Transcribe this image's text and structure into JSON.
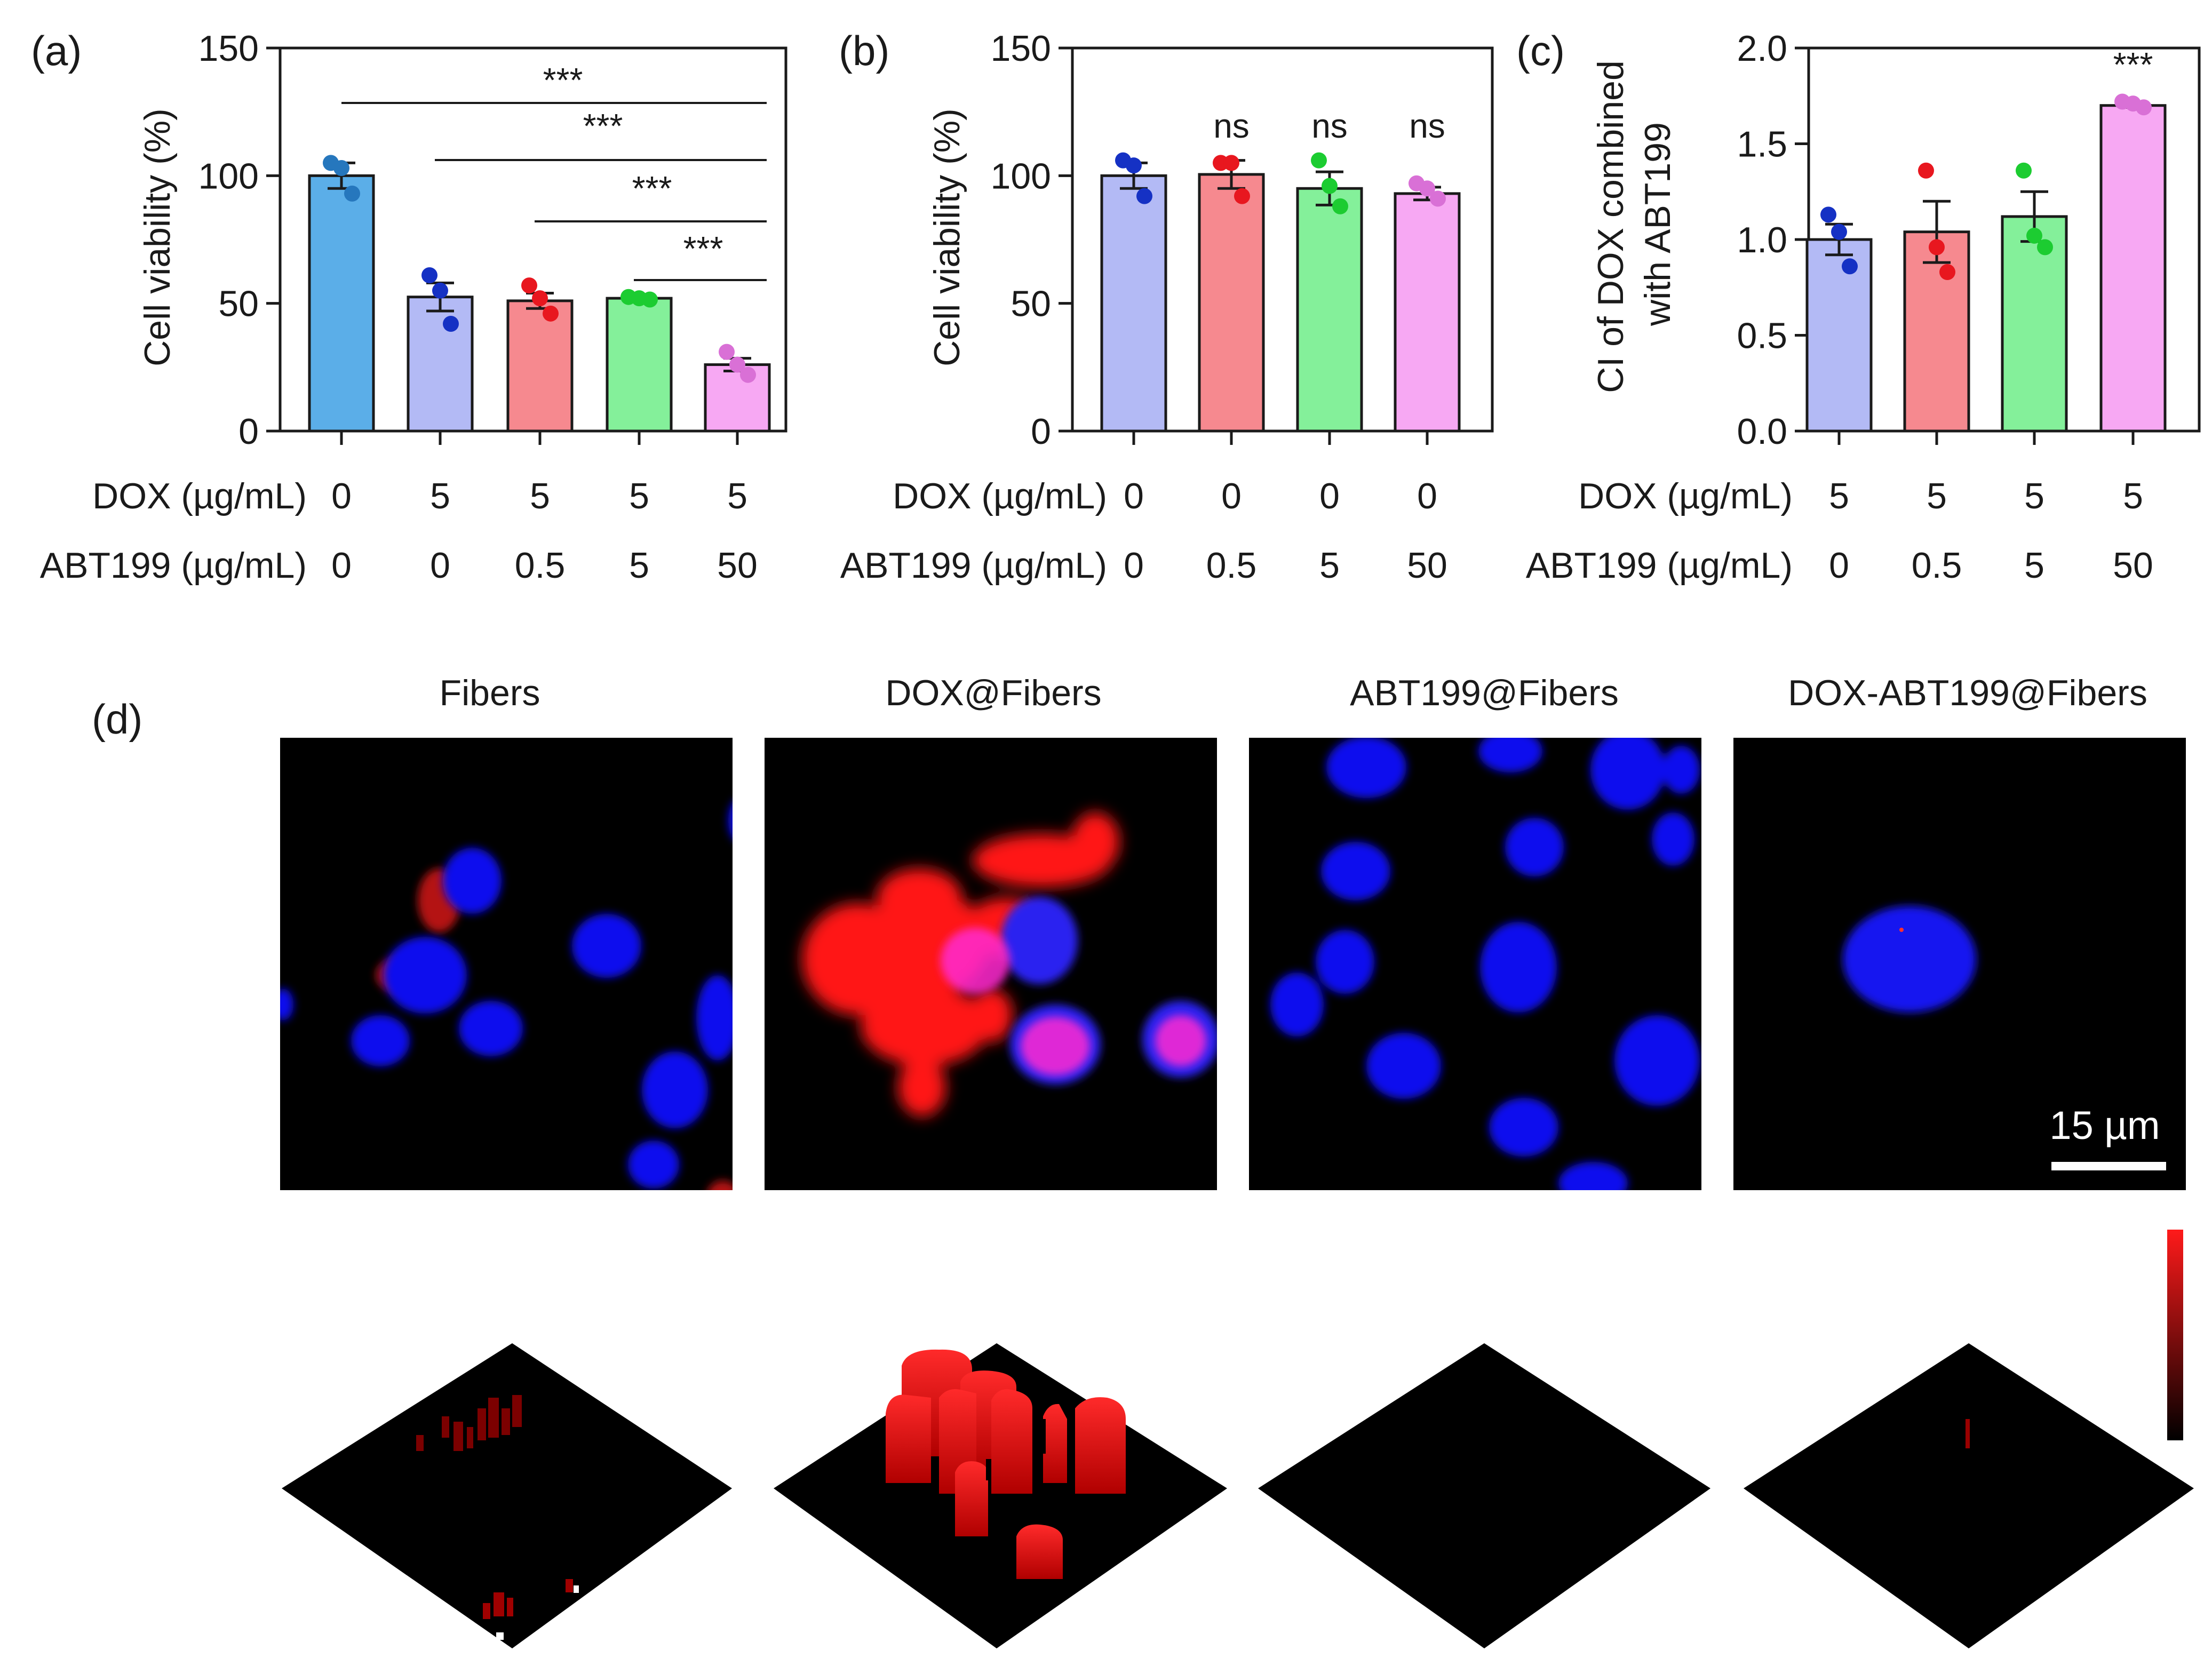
{
  "chart_data": [
    {
      "panel": "(a)",
      "type": "bar",
      "ylabel": "Cell viability (%)",
      "ylim": [
        0,
        150
      ],
      "yticks": [
        0,
        50,
        100,
        150
      ],
      "row_labels": [
        "DOX (µg/mL)",
        "ABT199 (µg/mL)"
      ],
      "categories": [
        {
          "dox": "0",
          "abt": "0"
        },
        {
          "dox": "5",
          "abt": "0"
        },
        {
          "dox": "5",
          "abt": "0.5"
        },
        {
          "dox": "5",
          "abt": "5"
        },
        {
          "dox": "5",
          "abt": "50"
        }
      ],
      "values": [
        100,
        52.5,
        51,
        52,
        26
      ],
      "errors": [
        5,
        5.5,
        3,
        1,
        2.5
      ],
      "points": [
        [
          105,
          103,
          93
        ],
        [
          61,
          55,
          42
        ],
        [
          57,
          52,
          46
        ],
        [
          52.5,
          52,
          51.5
        ],
        [
          31,
          26,
          22
        ]
      ],
      "fill_colors": [
        "#5baee8",
        "#b3baf5",
        "#f6898f",
        "#84f09a",
        "#f7a8f3"
      ],
      "dot_colors": [
        "#2677bd",
        "#1531c4",
        "#e8171f",
        "#1ccc31",
        "#d970d6"
      ],
      "significance": [
        {
          "from": 0,
          "to": 4,
          "label": "***"
        },
        {
          "from": 1,
          "to": 4,
          "label": "***"
        },
        {
          "from": 2,
          "to": 4,
          "label": "***"
        },
        {
          "from": 3,
          "to": 4,
          "label": "***"
        }
      ]
    },
    {
      "panel": "(b)",
      "type": "bar",
      "ylabel": "Cell viability (%)",
      "ylim": [
        0,
        150
      ],
      "yticks": [
        0,
        50,
        100,
        150
      ],
      "row_labels": [
        "DOX (µg/mL)",
        "ABT199 (µg/mL)"
      ],
      "categories": [
        {
          "dox": "0",
          "abt": "0"
        },
        {
          "dox": "0",
          "abt": "0.5"
        },
        {
          "dox": "0",
          "abt": "5"
        },
        {
          "dox": "0",
          "abt": "50"
        }
      ],
      "values": [
        100,
        100.5,
        95,
        93
      ],
      "errors": [
        5,
        5.5,
        6.5,
        2.5
      ],
      "points": [
        [
          106,
          104,
          92
        ],
        [
          105,
          105,
          92
        ],
        [
          106,
          96,
          88
        ],
        [
          97,
          95,
          91
        ]
      ],
      "fill_colors": [
        "#b3baf5",
        "#f6898f",
        "#84f09a",
        "#f7a8f3"
      ],
      "dot_colors": [
        "#1531c4",
        "#e8171f",
        "#1ccc31",
        "#d970d6"
      ],
      "annotations": [
        "",
        "ns",
        "ns",
        "ns"
      ]
    },
    {
      "panel": "(c)",
      "type": "bar",
      "ylabel": "CI of DOX combined with ABT199",
      "ylabel_lines": [
        "CI of DOX combined",
        "with ABT199"
      ],
      "ylim": [
        0,
        2.0
      ],
      "yticks": [
        "0.0",
        "0.5",
        "1.0",
        "1.5",
        "2.0"
      ],
      "row_labels": [
        "DOX (µg/mL)",
        "ABT199 (µg/mL)"
      ],
      "categories": [
        {
          "dox": "5",
          "abt": "0"
        },
        {
          "dox": "5",
          "abt": "0.5"
        },
        {
          "dox": "5",
          "abt": "5"
        },
        {
          "dox": "5",
          "abt": "50"
        }
      ],
      "values": [
        1.0,
        1.04,
        1.12,
        1.7
      ],
      "errors": [
        0.08,
        0.16,
        0.13,
        0.01
      ],
      "points": [
        [
          1.13,
          1.04,
          0.86
        ],
        [
          1.36,
          0.96,
          0.83
        ],
        [
          1.36,
          1.02,
          0.96
        ],
        [
          1.72,
          1.71,
          1.69
        ]
      ],
      "fill_colors": [
        "#b3baf5",
        "#f6898f",
        "#84f09a",
        "#f7a8f3"
      ],
      "dot_colors": [
        "#1531c4",
        "#e8171f",
        "#1ccc31",
        "#d970d6"
      ],
      "annotations": [
        "",
        "",
        "",
        "***"
      ]
    }
  ],
  "panel_d": {
    "label": "(d)",
    "titles": [
      "Fibers",
      "DOX@Fibers",
      "ABT199@Fibers",
      "DOX-ABT199@Fibers"
    ],
    "scale_bar": "15 µm",
    "red_intensity": [
      0.25,
      1.0,
      0.0,
      0.05
    ],
    "colors": {
      "nucleus": "#1a1aff",
      "dox": "#ff1a1a",
      "background": "#000000"
    }
  }
}
